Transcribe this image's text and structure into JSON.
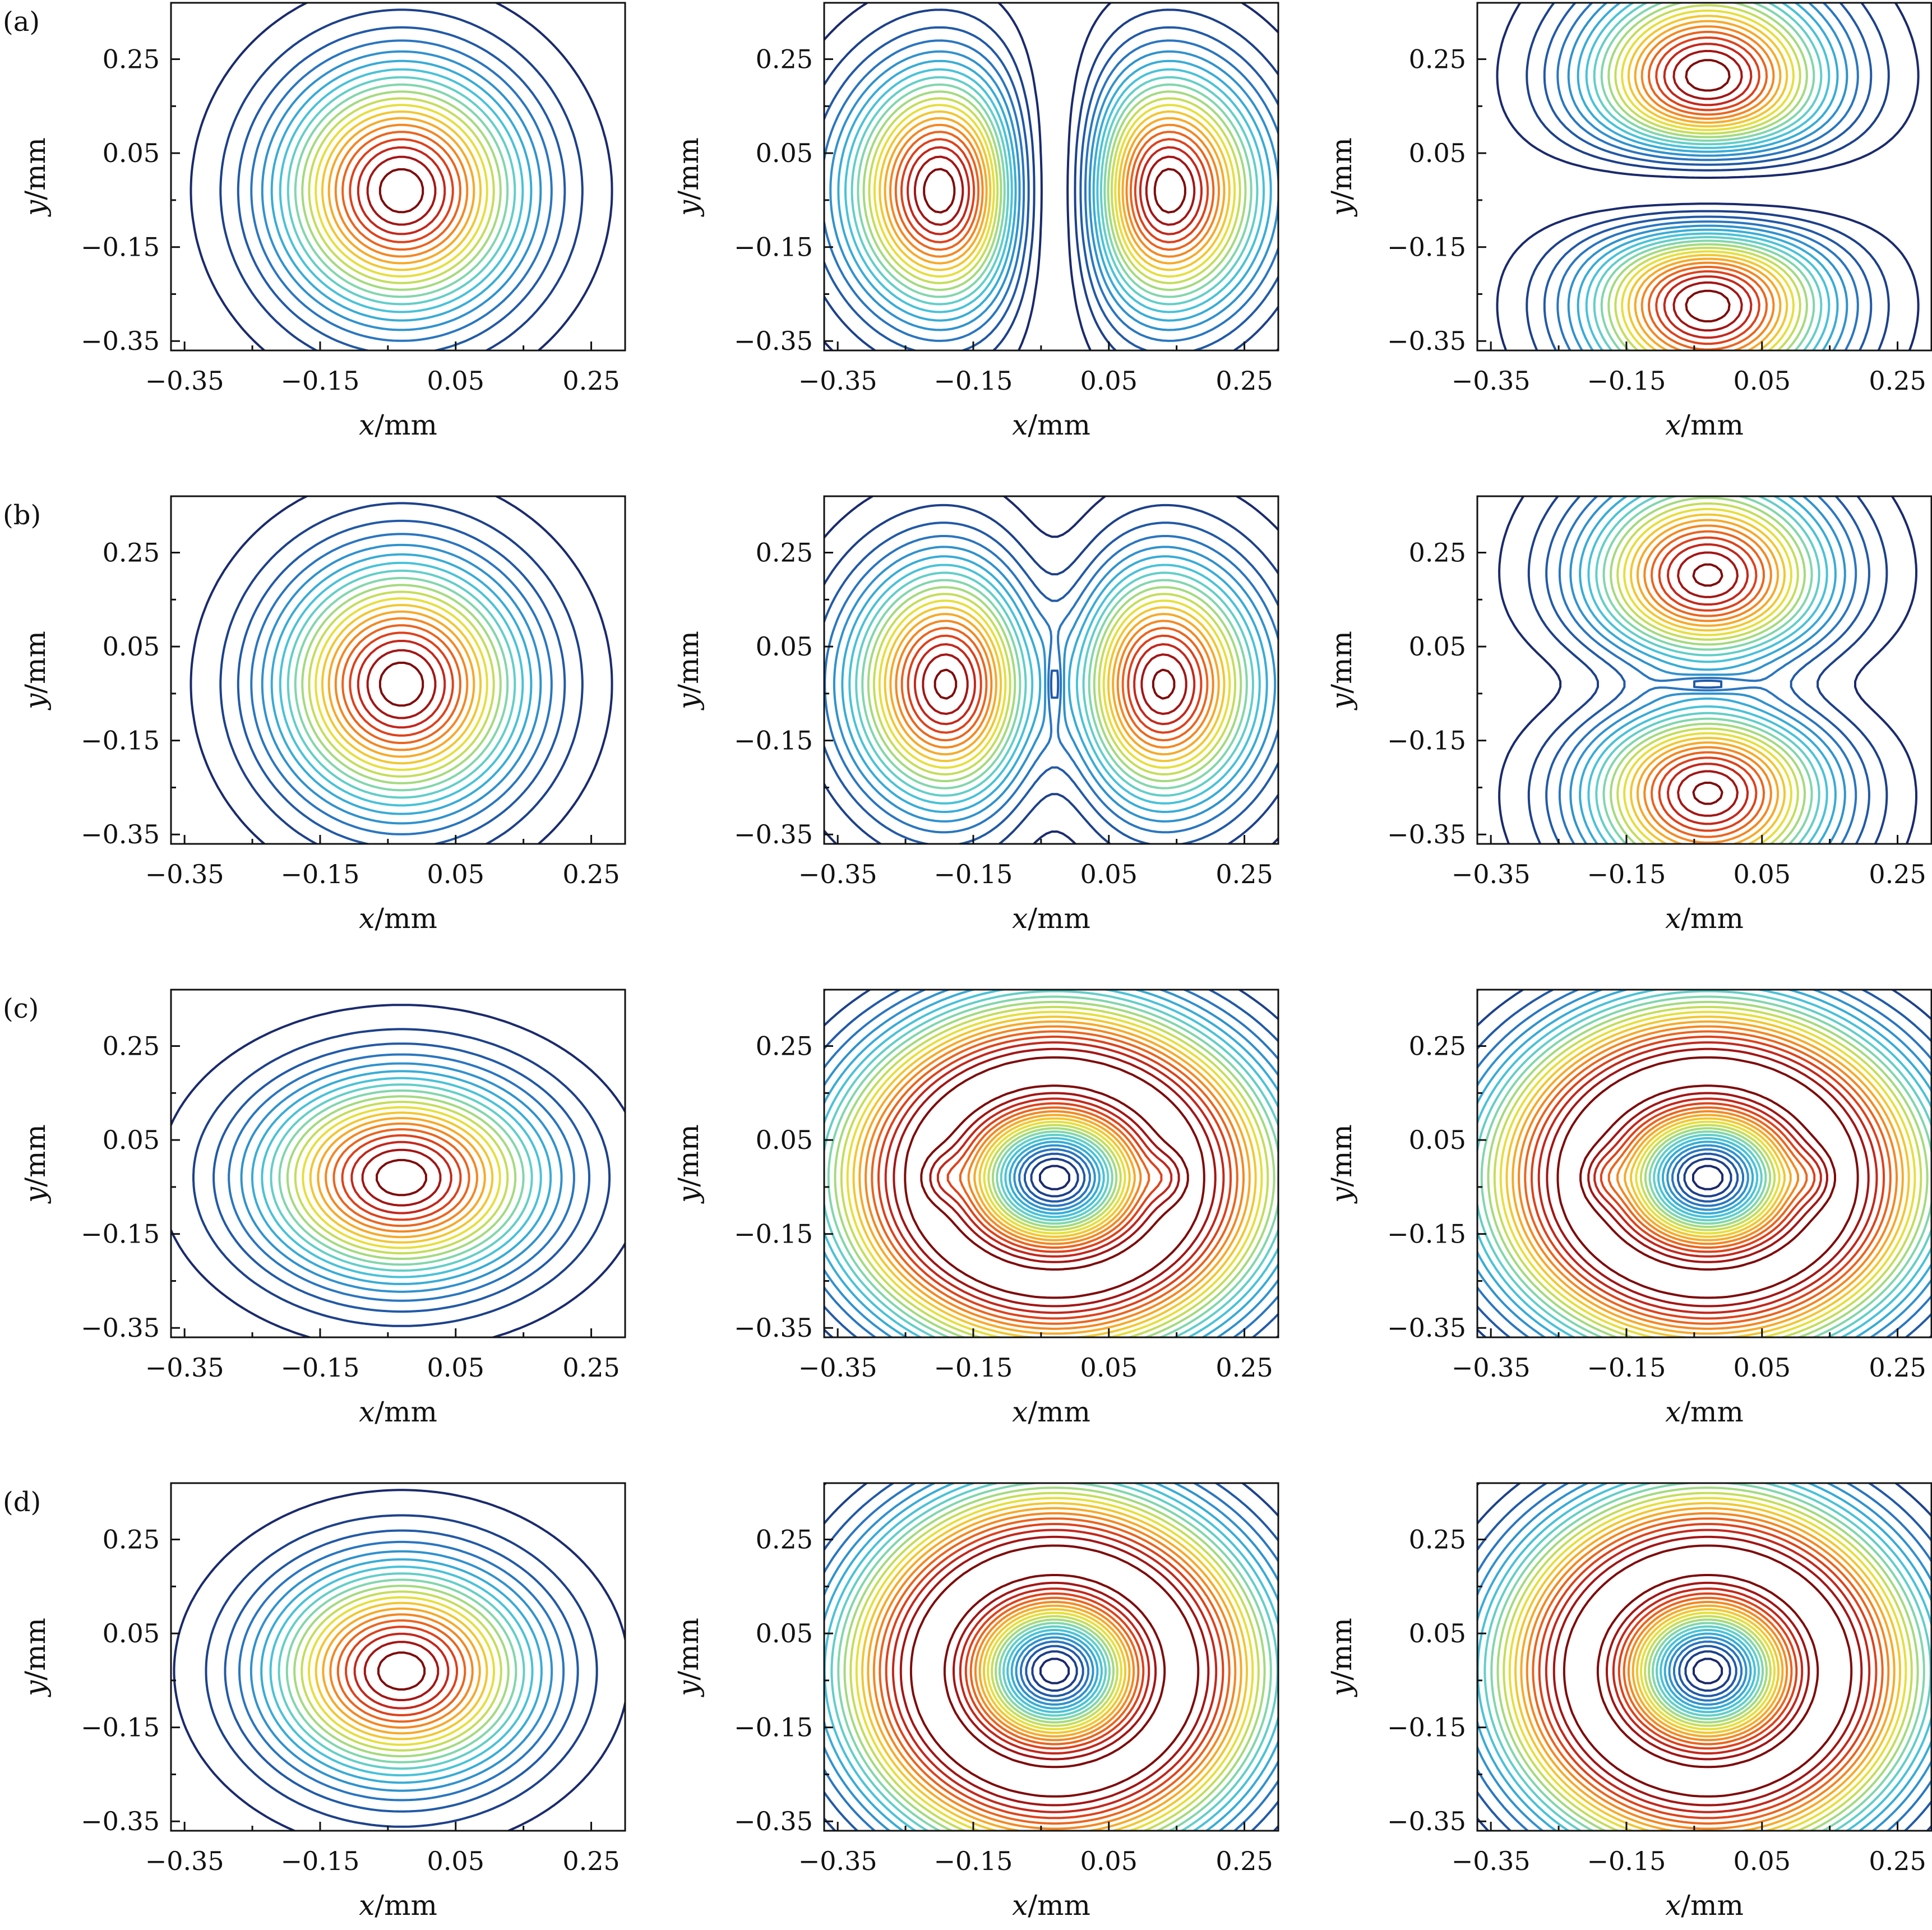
{
  "figure": {
    "rows": [
      {
        "label": "(a)",
        "panels": [
          {
            "type": "single",
            "ex": 1.0,
            "ey": 1.0
          },
          {
            "type": "split-v",
            "ex": 1.0,
            "ey": 1.0
          },
          {
            "type": "split-h",
            "ex": 1.0,
            "ey": 1.0
          }
        ]
      },
      {
        "label": "(b)",
        "panels": [
          {
            "type": "single",
            "ex": 1.0,
            "ey": 1.0
          },
          {
            "type": "dip-v",
            "ex": 1.0,
            "ey": 1.0
          },
          {
            "type": "dip-h",
            "ex": 1.0,
            "ey": 1.0
          }
        ]
      },
      {
        "label": "(c)",
        "panels": [
          {
            "type": "single",
            "ex": 1.15,
            "ey": 0.82
          },
          {
            "type": "donut-broken",
            "ex": 1.15,
            "ey": 0.92
          },
          {
            "type": "donut-broken2",
            "ex": 1.15,
            "ey": 0.92
          }
        ]
      },
      {
        "label": "(d)",
        "panels": [
          {
            "type": "single",
            "ex": 1.08,
            "ey": 0.86
          },
          {
            "type": "donut",
            "ex": 1.1,
            "ey": 0.96
          },
          {
            "type": "donut",
            "ex": 1.1,
            "ey": 0.96
          }
        ]
      }
    ]
  },
  "chart_data": {
    "type": "contour",
    "grid": "4x3",
    "xlabel": "x/mm",
    "ylabel": "y/mm",
    "xlim": [
      -0.37,
      0.3
    ],
    "ylim": [
      -0.37,
      0.37
    ],
    "xticks": [
      -0.35,
      -0.15,
      0.05,
      0.25
    ],
    "yticks": [
      -0.35,
      -0.15,
      0.05,
      0.25
    ],
    "xtick_labels": [
      "−0.35",
      "−0.15",
      "0.05",
      "0.25"
    ],
    "ytick_labels": [
      "−0.35",
      "−0.15",
      "0.05",
      "0.25"
    ],
    "center": [
      -0.03,
      -0.03
    ],
    "contour_levels": 20,
    "colormap": [
      "#1a2a6c",
      "#1f4e9c",
      "#2b7bc4",
      "#34a7d6",
      "#4fc9d9",
      "#7fd6b0",
      "#b5dc6a",
      "#e9df3b",
      "#f7b52c",
      "#f28021",
      "#e2461c",
      "#b81d1d",
      "#7e0b0b"
    ]
  }
}
